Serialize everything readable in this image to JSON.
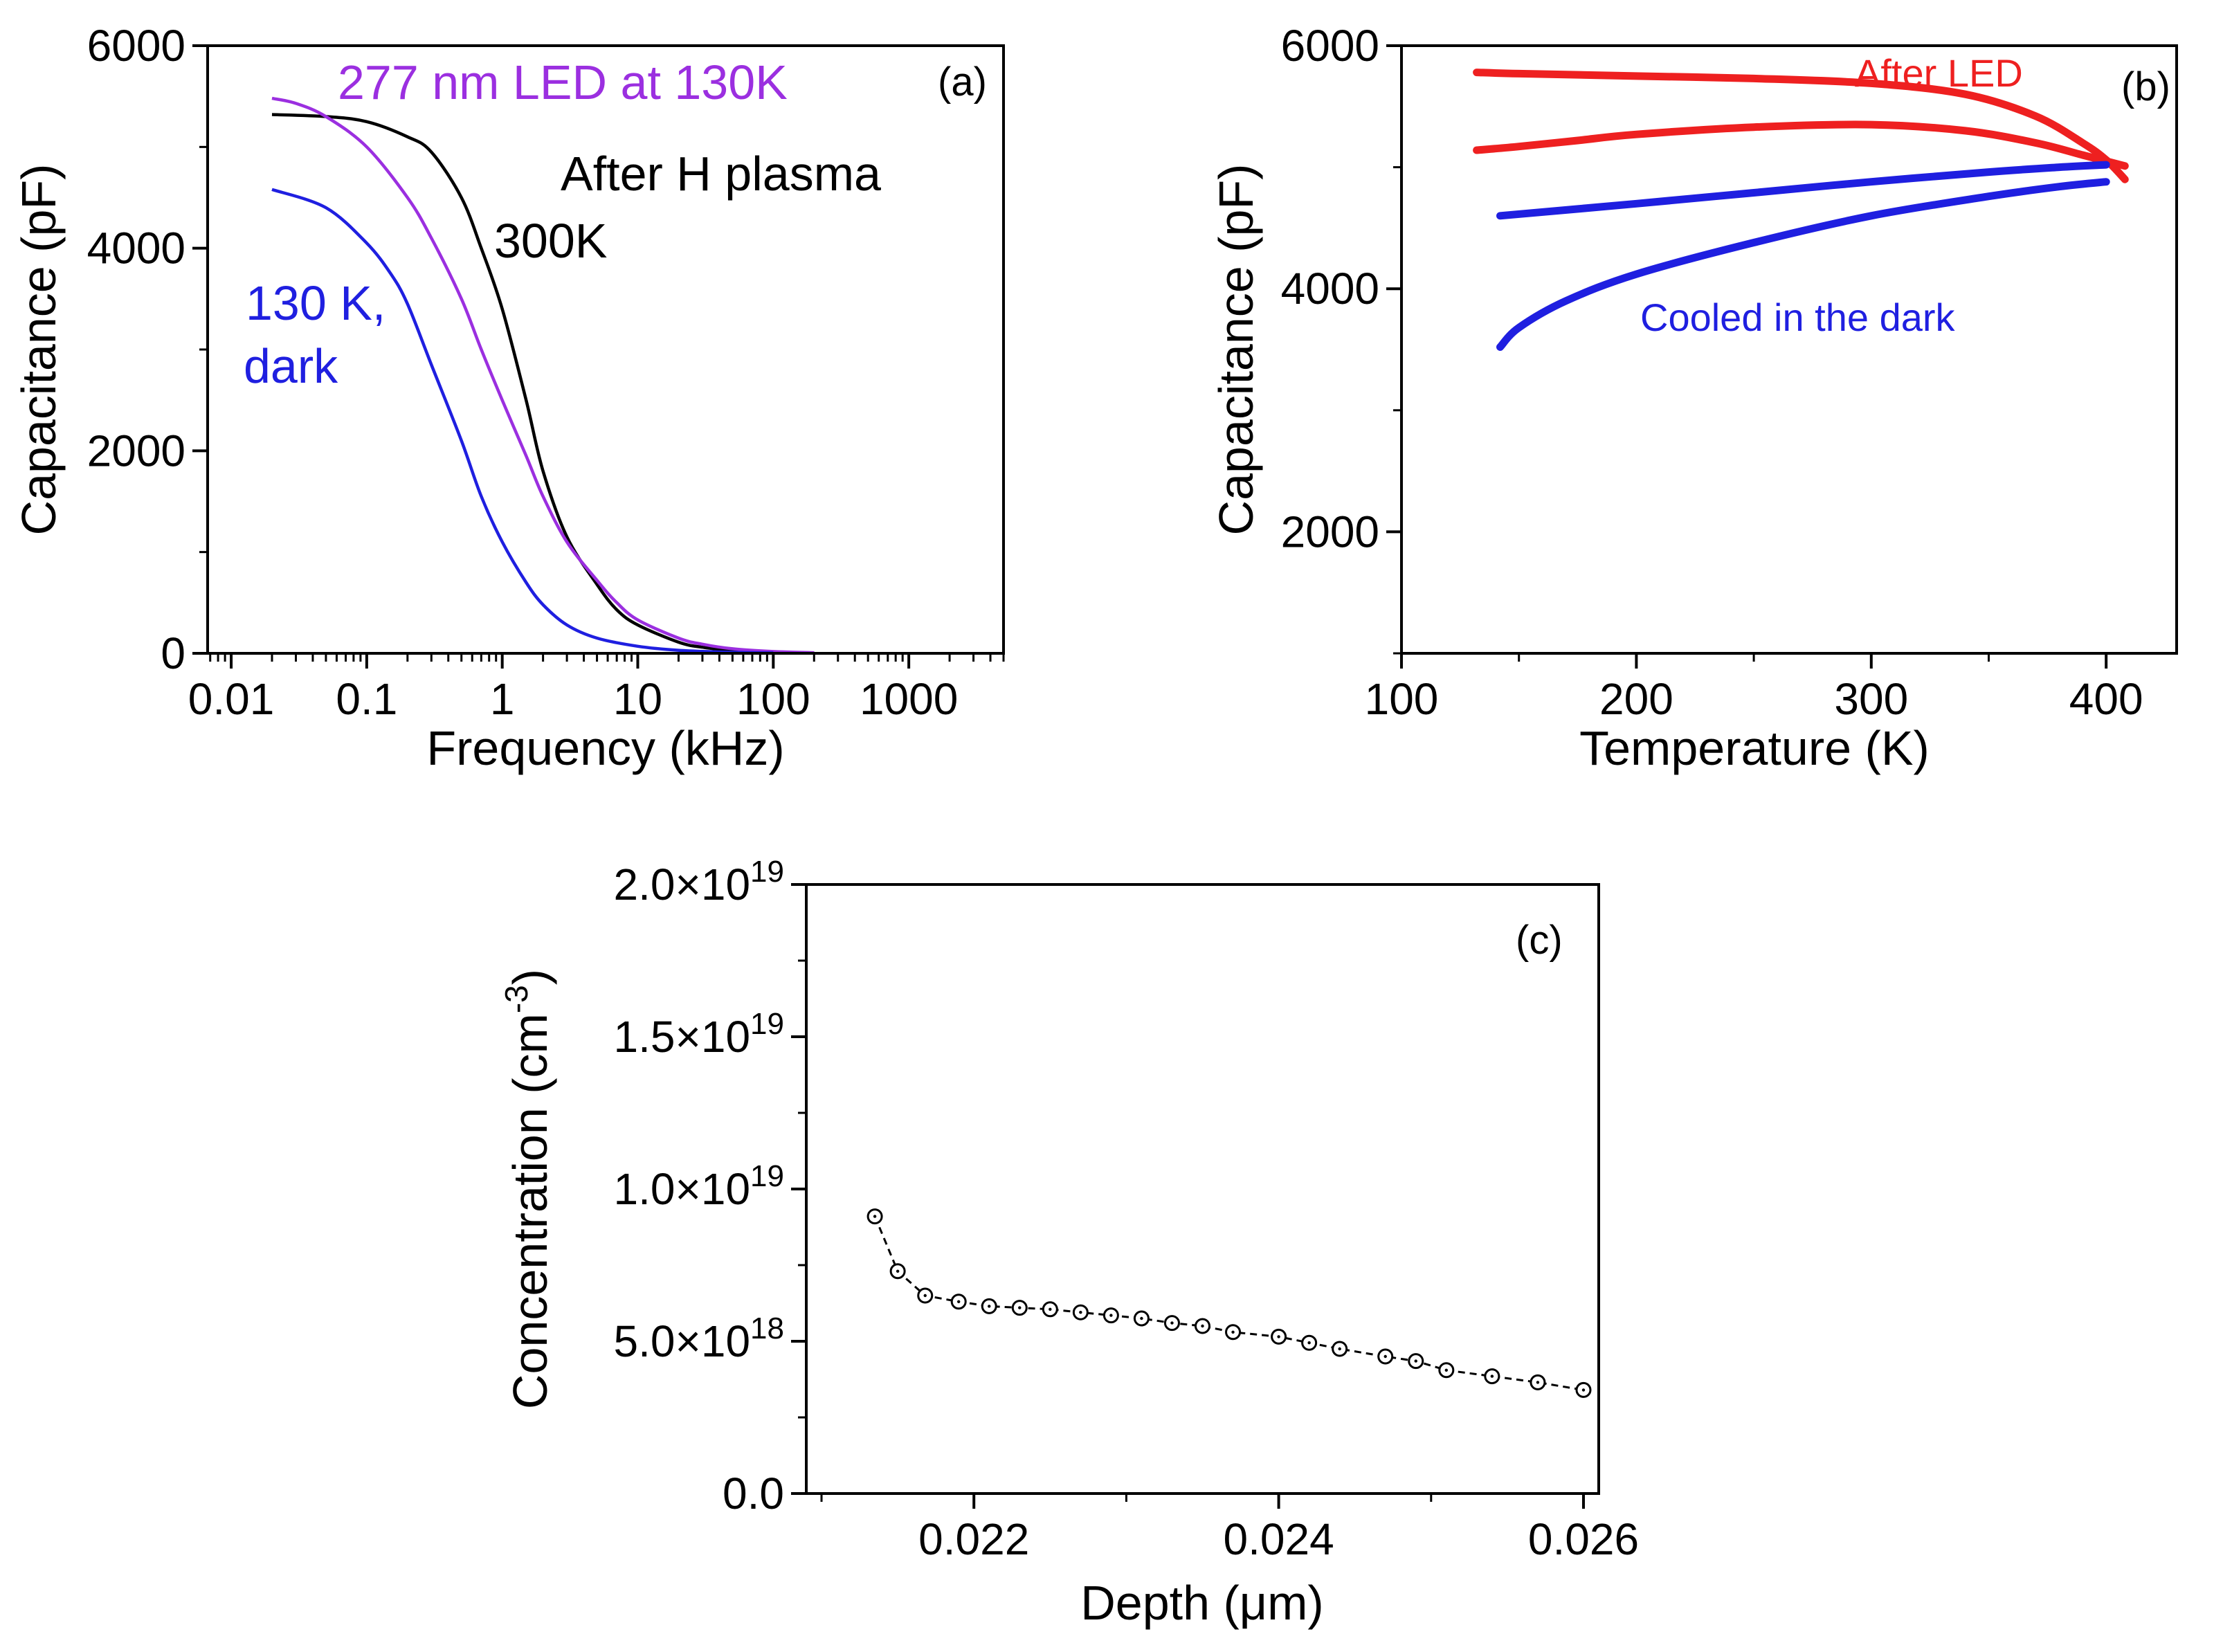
{
  "chart_data": [
    {
      "id": "a",
      "type": "line",
      "panel_label": "(a)",
      "xlabel": "Frequency (kHz)",
      "ylabel": "Capacitance (pF)",
      "xscale": "log",
      "xlim": [
        0.0067,
        5000
      ],
      "ylim": [
        0,
        6000
      ],
      "xticks": [
        {
          "value": 0.01,
          "label": "0.01"
        },
        {
          "value": 0.1,
          "label": "0.1"
        },
        {
          "value": 1,
          "label": "1"
        },
        {
          "value": 10,
          "label": "10"
        },
        {
          "value": 100,
          "label": "100"
        },
        {
          "value": 1000,
          "label": "1000"
        }
      ],
      "yticks": [
        {
          "value": 0,
          "label": "0"
        },
        {
          "value": 2000,
          "label": "2000"
        },
        {
          "value": 4000,
          "label": "4000"
        },
        {
          "value": 6000,
          "label": "6000"
        }
      ],
      "series": [
        {
          "name": "300K",
          "color": "#000000",
          "x": [
            0.02,
            0.05,
            0.1,
            0.2,
            0.3,
            0.5,
            0.7,
            1.0,
            1.5,
            2.0,
            3.0,
            5.0,
            7.0,
            10,
            20,
            30,
            50,
            100,
            200
          ],
          "y": [
            5320,
            5300,
            5250,
            5100,
            4950,
            4500,
            4000,
            3400,
            2500,
            1800,
            1150,
            680,
            430,
            280,
            110,
            60,
            30,
            12,
            5
          ]
        },
        {
          "name": "277 nm LED at 130K",
          "color": "#9b2fe0",
          "x": [
            0.02,
            0.03,
            0.05,
            0.1,
            0.2,
            0.3,
            0.5,
            0.7,
            1.0,
            1.5,
            2.0,
            3.0,
            5.0,
            7.0,
            10,
            20,
            30,
            50,
            100,
            200
          ],
          "y": [
            5480,
            5430,
            5300,
            5000,
            4500,
            4100,
            3500,
            3000,
            2500,
            1950,
            1550,
            1100,
            720,
            500,
            330,
            150,
            90,
            45,
            18,
            6
          ]
        },
        {
          "name": "130 K, dark",
          "color": "#1f1fe0",
          "x": [
            0.02,
            0.05,
            0.1,
            0.15,
            0.2,
            0.3,
            0.5,
            0.7,
            1.0,
            1.5,
            2.0,
            3.0,
            5.0,
            10,
            20,
            50,
            100
          ],
          "y": [
            4580,
            4400,
            4050,
            3750,
            3450,
            2850,
            2100,
            1550,
            1100,
            700,
            480,
            280,
            150,
            70,
            30,
            10,
            4
          ]
        }
      ],
      "annotations": [
        {
          "text": "277 nm LED at 130K",
          "color": "#9b2fe0"
        },
        {
          "text": "After H plasma",
          "color": "#000000"
        },
        {
          "text": "300K",
          "color": "#000000"
        },
        {
          "text": "130 K,",
          "color": "#1f1fe0"
        },
        {
          "text": "dark",
          "color": "#1f1fe0"
        }
      ]
    },
    {
      "id": "b",
      "type": "line",
      "panel_label": "(b)",
      "xlabel": "Temperature (K)",
      "ylabel": "Capacitance (pF)",
      "xlim": [
        100,
        430
      ],
      "ylim": [
        1000,
        6000
      ],
      "xticks": [
        {
          "value": 100,
          "label": "100"
        },
        {
          "value": 200,
          "label": "200"
        },
        {
          "value": 300,
          "label": "300"
        },
        {
          "value": 400,
          "label": "400"
        }
      ],
      "yticks": [
        {
          "value": 2000,
          "label": "2000"
        },
        {
          "value": 4000,
          "label": "4000"
        },
        {
          "value": 6000,
          "label": "6000"
        }
      ],
      "series": [
        {
          "name": "After LED (upper)",
          "color": "#ee2020",
          "x": [
            132,
            150,
            200,
            250,
            300,
            340,
            370,
            390,
            400,
            408
          ],
          "y": [
            5780,
            5770,
            5750,
            5730,
            5690,
            5600,
            5420,
            5200,
            5060,
            4900
          ]
        },
        {
          "name": "After LED (lower)",
          "color": "#ee2020",
          "x": [
            132,
            150,
            175,
            200,
            250,
            300,
            340,
            370,
            390,
            400,
            408
          ],
          "y": [
            5140,
            5170,
            5220,
            5270,
            5330,
            5350,
            5300,
            5200,
            5100,
            5050,
            5010
          ]
        },
        {
          "name": "Cooled in the dark (upper)",
          "color": "#1f1fe0",
          "x": [
            142,
            200,
            250,
            300,
            350,
            380,
            400
          ],
          "y": [
            4600,
            4700,
            4790,
            4880,
            4960,
            5000,
            5020
          ]
        },
        {
          "name": "Cooled in the dark (lower)",
          "color": "#1f1fe0",
          "x": [
            142,
            150,
            170,
            200,
            250,
            300,
            350,
            380,
            400
          ],
          "y": [
            3520,
            3680,
            3900,
            4120,
            4380,
            4600,
            4760,
            4840,
            4880
          ]
        }
      ],
      "annotations": [
        {
          "text": "After LED",
          "color": "#ee2020"
        },
        {
          "text": "Cooled in the dark",
          "color": "#1f1fe0"
        }
      ]
    },
    {
      "id": "c",
      "type": "scatter",
      "panel_label": "(c)",
      "xlabel": "Depth (μm)",
      "ylabel": "Concentration (cm⁻³)",
      "ylabel_base": "Concentration (cm",
      "ylabel_sup": "-3",
      "ylabel_close": ")",
      "xlim": [
        0.0209,
        0.0261
      ],
      "ylim": [
        0,
        2e+19
      ],
      "xticks": [
        {
          "value": 0.022,
          "label": "0.022"
        },
        {
          "value": 0.024,
          "label": "0.024"
        },
        {
          "value": 0.026,
          "label": "0.026"
        }
      ],
      "yticks": [
        {
          "value": 0,
          "label": "0.0",
          "exp": ""
        },
        {
          "value": 5e+18,
          "label": "5.0×10",
          "exp": "18"
        },
        {
          "value": 1e+19,
          "label": "1.0×10",
          "exp": "19"
        },
        {
          "value": 1.5e+19,
          "label": "1.5×10",
          "exp": "19"
        },
        {
          "value": 2e+19,
          "label": "2.0×10",
          "exp": "19"
        }
      ],
      "series": [
        {
          "name": "Concentration",
          "color": "#000000",
          "x": [
            0.02135,
            0.0215,
            0.02168,
            0.0219,
            0.0221,
            0.0223,
            0.0225,
            0.0227,
            0.0229,
            0.0231,
            0.0233,
            0.0235,
            0.0237,
            0.024,
            0.0242,
            0.0244,
            0.0247,
            0.0249,
            0.0251,
            0.0254,
            0.0257,
            0.026
          ],
          "y": [
            9.1e+18,
            7.3e+18,
            6.5e+18,
            6.3e+18,
            6.15e+18,
            6.1e+18,
            6.05e+18,
            5.95e+18,
            5.85e+18,
            5.75e+18,
            5.6e+18,
            5.5e+18,
            5.3e+18,
            5.15e+18,
            4.95e+18,
            4.75e+18,
            4.5e+18,
            4.35e+18,
            4.05e+18,
            3.85e+18,
            3.65e+18,
            3.4e+18
          ]
        }
      ]
    }
  ]
}
